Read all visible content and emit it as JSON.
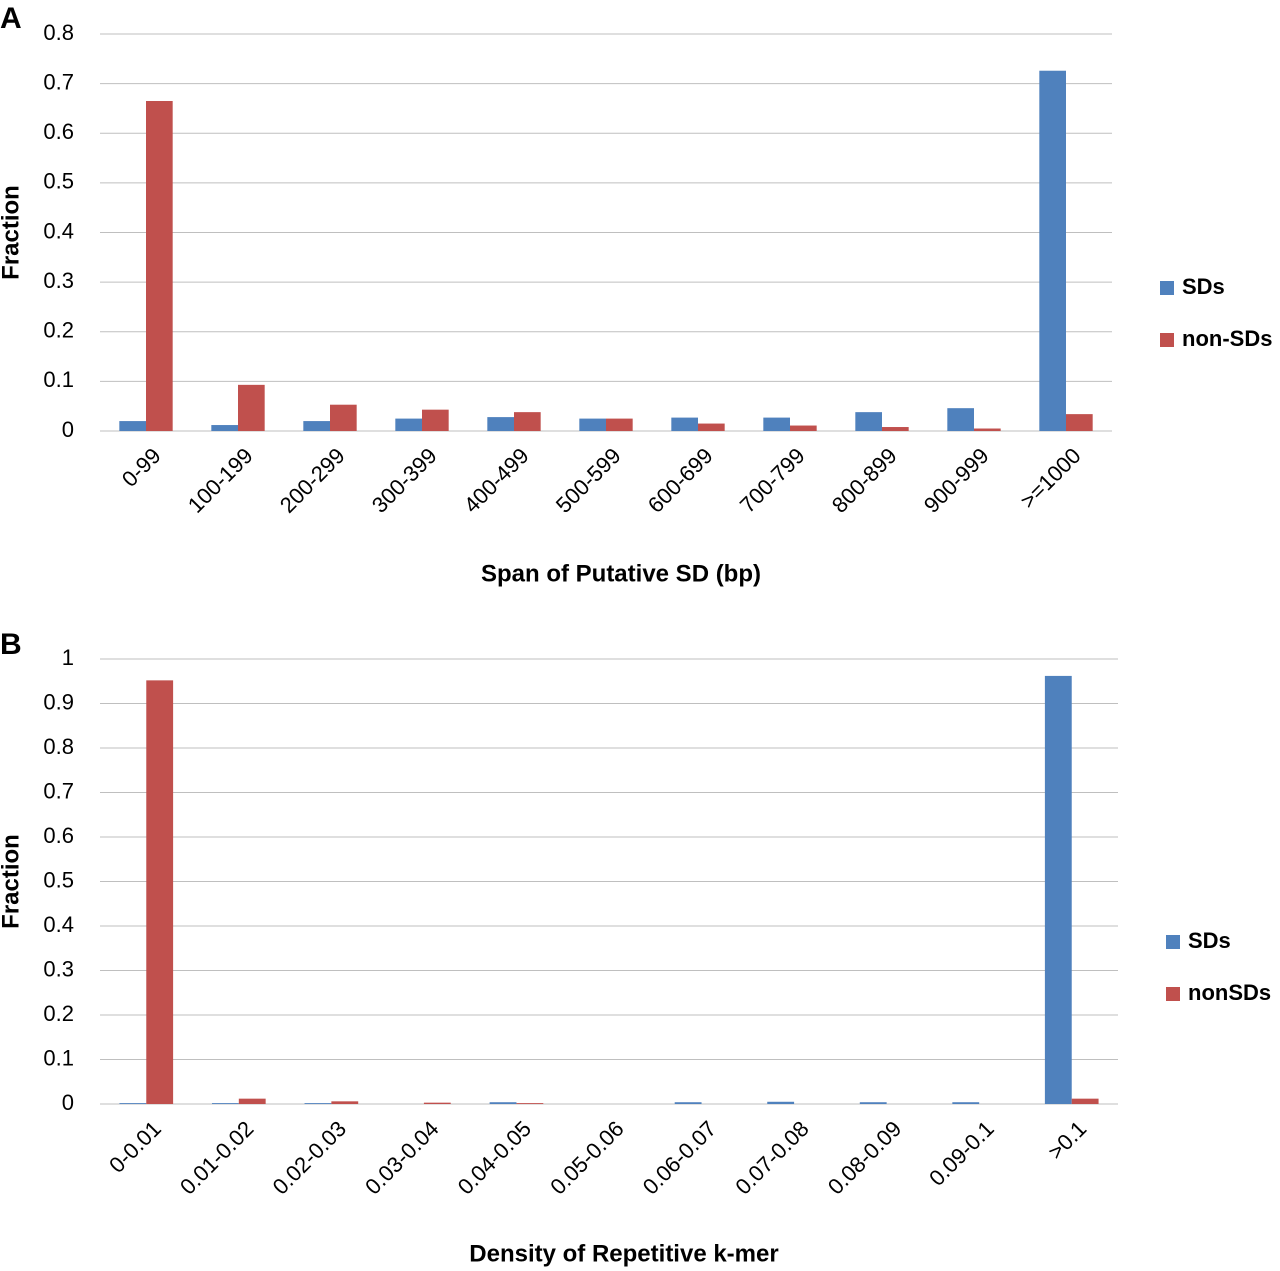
{
  "chart_data": [
    {
      "type": "bar",
      "panel": "A",
      "ylabel": "Fraction",
      "xlabel": "Span of Putative SD (bp)",
      "categories": [
        "0-99",
        "100-199",
        "200-299",
        "300-399",
        "400-499",
        "500-599",
        "600-699",
        "700-799",
        "800-899",
        "900-999",
        ">=1000"
      ],
      "series": [
        {
          "name": "SDs",
          "color": "#4f81bd",
          "values": [
            0.02,
            0.012,
            0.02,
            0.025,
            0.028,
            0.025,
            0.027,
            0.027,
            0.038,
            0.046,
            0.726
          ]
        },
        {
          "name": "non-SDs",
          "color": "#c0504d",
          "values": [
            0.665,
            0.093,
            0.053,
            0.043,
            0.038,
            0.025,
            0.015,
            0.011,
            0.008,
            0.005,
            0.034
          ]
        }
      ],
      "ylim": [
        0,
        0.8
      ],
      "yticks": [
        0,
        0.1,
        0.2,
        0.3,
        0.4,
        0.5,
        0.6,
        0.7,
        0.8
      ],
      "grid": true,
      "legend": "right"
    },
    {
      "type": "bar",
      "panel": "B",
      "ylabel": "Fraction",
      "xlabel": "Density of Repetitive k-mer",
      "categories": [
        "0-0.01",
        "0.01-0.02",
        "0.02-0.03",
        "0.03-0.04",
        "0.04-0.05",
        "0.05-0.06",
        "0.06-0.07",
        "0.07-0.08",
        "0.08-0.09",
        "0.09-0.1",
        ">0.1"
      ],
      "series": [
        {
          "name": "SDs",
          "color": "#4f81bd",
          "values": [
            0.002,
            0.002,
            0.002,
            0,
            0.004,
            0,
            0.004,
            0.005,
            0.004,
            0.004,
            0.962
          ]
        },
        {
          "name": "nonSDs",
          "color": "#c0504d",
          "values": [
            0.952,
            0.012,
            0.006,
            0.003,
            0.002,
            0,
            0,
            0,
            0,
            0,
            0.012
          ]
        }
      ],
      "ylim": [
        0,
        1
      ],
      "yticks": [
        0,
        0.1,
        0.2,
        0.3,
        0.4,
        0.5,
        0.6,
        0.7,
        0.8,
        0.9,
        1
      ],
      "grid": true,
      "legend": "right"
    }
  ]
}
